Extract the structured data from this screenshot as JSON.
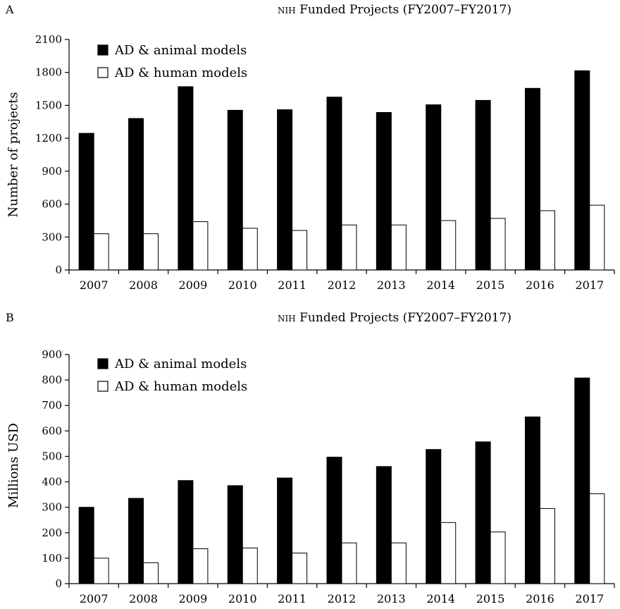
{
  "panels": [
    {
      "letter": "A",
      "title_prefix": "NIH",
      "title_rest": " Funded Projects (FY2007–FY2017)"
    },
    {
      "letter": "B",
      "title_prefix": "NIH",
      "title_rest": " Funded Projects (FY2007–FY2017)"
    }
  ],
  "chart_data": [
    {
      "type": "bar",
      "title": "NIH Funded Projects (FY2007–FY2017)",
      "xlabel": "",
      "ylabel": "Number of projects",
      "categories": [
        "2007",
        "2008",
        "2009",
        "2010",
        "2011",
        "2012",
        "2013",
        "2014",
        "2015",
        "2016",
        "2017"
      ],
      "series": [
        {
          "name": "AD & animal models",
          "color": "#000000",
          "values": [
            1245,
            1380,
            1670,
            1455,
            1460,
            1575,
            1435,
            1505,
            1545,
            1655,
            1815
          ]
        },
        {
          "name": "AD & human models",
          "color": "#ffffff",
          "values": [
            330,
            330,
            440,
            380,
            360,
            410,
            410,
            450,
            470,
            540,
            590
          ]
        }
      ],
      "ylim": [
        0,
        2100
      ],
      "yticks": [
        0,
        300,
        600,
        900,
        1200,
        1500,
        1800,
        2100
      ],
      "legend": "top-left",
      "grid": false
    },
    {
      "type": "bar",
      "title": "NIH Funded Projects (FY2007–FY2017)",
      "xlabel": "",
      "ylabel": "Millions USD",
      "categories": [
        "2007",
        "2008",
        "2009",
        "2010",
        "2011",
        "2012",
        "2013",
        "2014",
        "2015",
        "2016",
        "2017"
      ],
      "series": [
        {
          "name": "AD & animal models",
          "color": "#000000",
          "values": [
            300,
            335,
            405,
            385,
            415,
            497,
            460,
            527,
            557,
            655,
            808
          ]
        },
        {
          "name": "AD & human models",
          "color": "#ffffff",
          "values": [
            100,
            82,
            137,
            140,
            120,
            160,
            160,
            240,
            203,
            295,
            353
          ]
        }
      ],
      "ylim": [
        0,
        900
      ],
      "yticks": [
        0,
        100,
        200,
        300,
        400,
        500,
        600,
        700,
        800,
        900
      ],
      "legend": "top-left",
      "grid": false
    }
  ]
}
